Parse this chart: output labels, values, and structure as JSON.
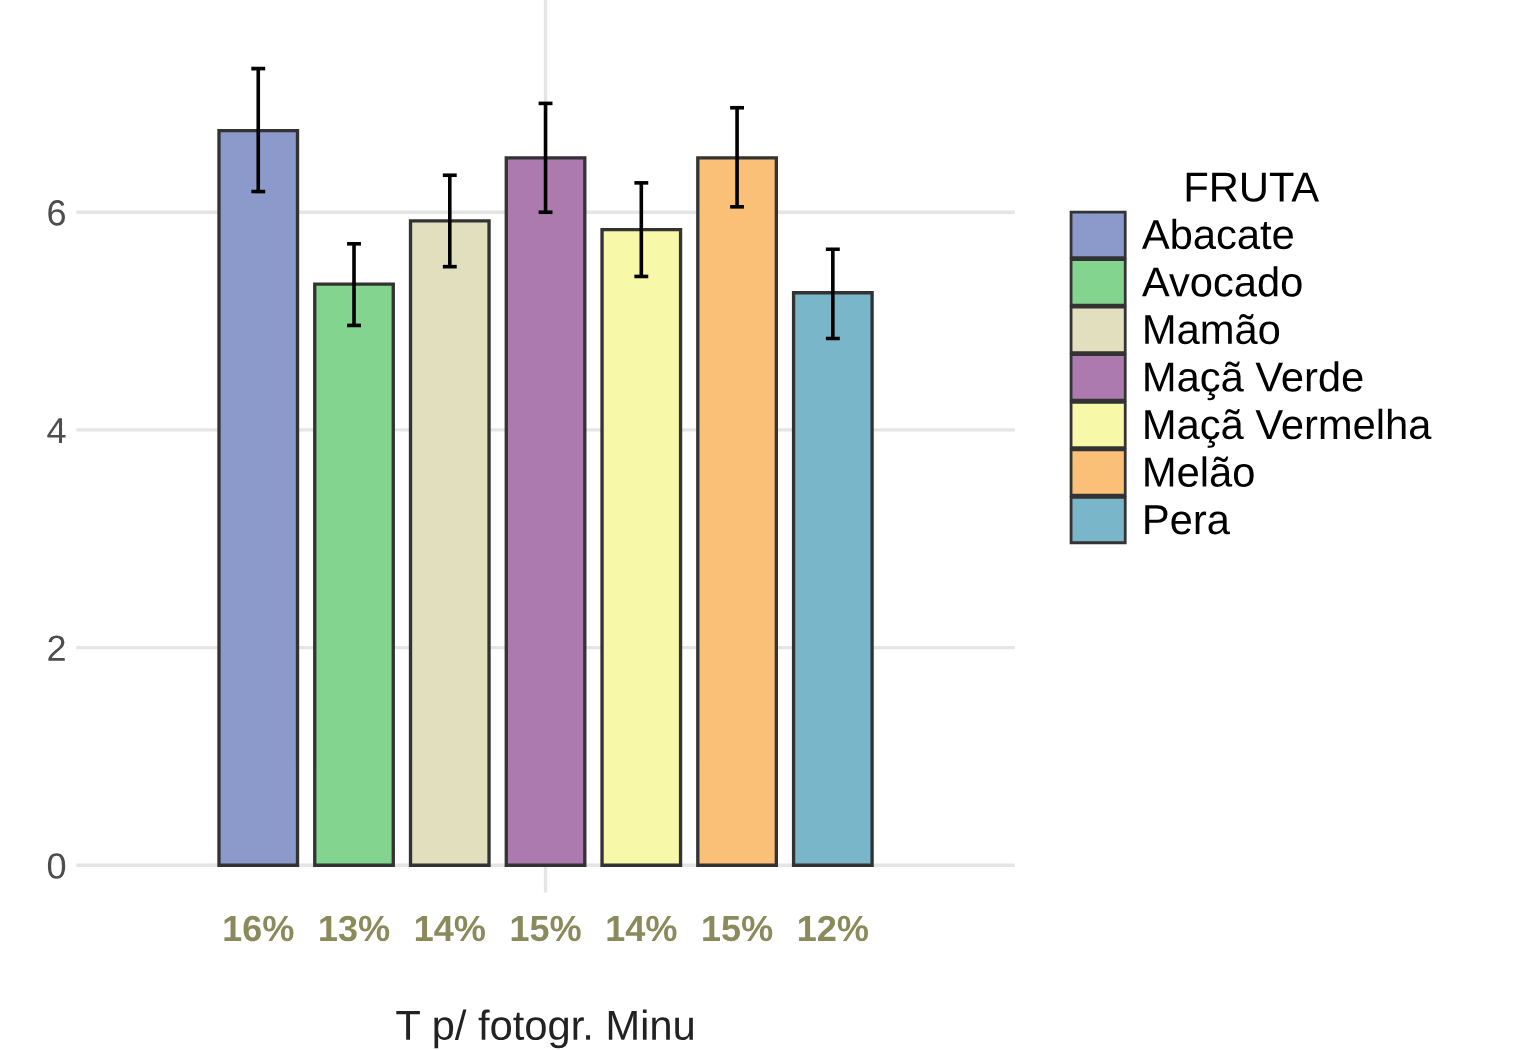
{
  "chart_data": {
    "type": "bar",
    "xlabel": "T p/ fotogr. Minu",
    "legend_title": "FRUTA",
    "categories": [
      "16%",
      "13%",
      "14%",
      "15%",
      "14%",
      "15%",
      "12%"
    ],
    "series": [
      {
        "name": "Abacate",
        "color": "#8c9acb",
        "values": [
          6.75,
          null,
          null,
          null,
          null,
          null,
          null
        ],
        "errors": [
          [
            6.19,
            7.32
          ],
          null,
          null,
          null,
          null,
          null,
          null
        ]
      },
      {
        "name": "Avocado",
        "color": "#83d48f",
        "values": [
          null,
          5.34,
          null,
          null,
          null,
          null,
          null
        ],
        "errors": [
          null,
          [
            4.96,
            5.71
          ],
          null,
          null,
          null,
          null,
          null
        ]
      },
      {
        "name": "Mamão",
        "color": "#e2dfbe",
        "values": [
          null,
          null,
          5.92,
          null,
          null,
          null,
          null
        ],
        "errors": [
          null,
          null,
          [
            5.5,
            6.34
          ],
          null,
          null,
          null,
          null
        ]
      },
      {
        "name": "Maçã Verde",
        "color": "#ad7aaf",
        "values": [
          null,
          null,
          null,
          6.5,
          null,
          null,
          null
        ],
        "errors": [
          null,
          null,
          null,
          [
            6.0,
            7.0
          ],
          null,
          null,
          null
        ]
      },
      {
        "name": "Maçã Vermelha",
        "color": "#f8f8a9",
        "values": [
          null,
          null,
          null,
          null,
          5.84,
          null,
          null
        ],
        "errors": [
          null,
          null,
          null,
          null,
          [
            5.41,
            6.27
          ],
          null,
          null
        ]
      },
      {
        "name": "Melão",
        "color": "#fbc077",
        "values": [
          null,
          null,
          null,
          null,
          null,
          6.5,
          null
        ],
        "errors": [
          null,
          null,
          null,
          null,
          null,
          [
            6.05,
            6.96
          ],
          null
        ]
      },
      {
        "name": "Pera",
        "color": "#79b6c9",
        "values": [
          null,
          null,
          null,
          null,
          null,
          null,
          5.26
        ],
        "errors": [
          null,
          null,
          null,
          null,
          null,
          null,
          [
            4.84,
            5.66
          ]
        ]
      }
    ],
    "ylim": [
      -0.25,
      7.95
    ],
    "yticks": [
      0,
      2,
      4,
      6
    ],
    "grid": true,
    "legend": "right"
  }
}
